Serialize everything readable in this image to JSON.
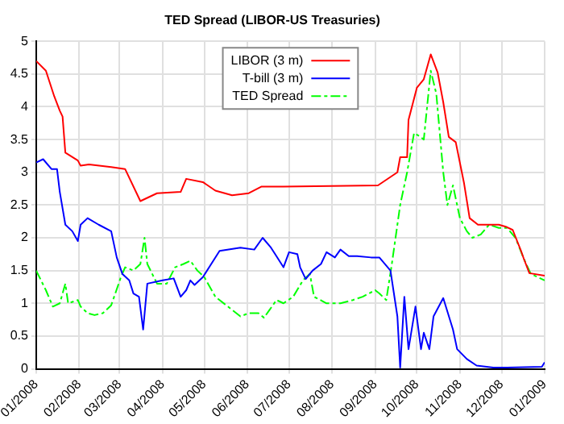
{
  "chart_data": {
    "type": "line",
    "title": "TED Spread (LIBOR-US Treasuries)",
    "xlim": [
      "2008-01-01",
      "2009-01-01"
    ],
    "xticks": [
      {
        "value": "2008-01-01",
        "label": "01/2008"
      },
      {
        "value": "2008-02-01",
        "label": "02/2008"
      },
      {
        "value": "2008-03-01",
        "label": "03/2008"
      },
      {
        "value": "2008-04-01",
        "label": "04/2008"
      },
      {
        "value": "2008-05-01",
        "label": "05/2008"
      },
      {
        "value": "2008-06-01",
        "label": "06/2008"
      },
      {
        "value": "2008-07-01",
        "label": "07/2008"
      },
      {
        "value": "2008-08-01",
        "label": "08/2008"
      },
      {
        "value": "2008-09-01",
        "label": "09/2008"
      },
      {
        "value": "2008-10-01",
        "label": "10/2008"
      },
      {
        "value": "2008-11-01",
        "label": "11/2008"
      },
      {
        "value": "2008-12-01",
        "label": "12/2008"
      },
      {
        "value": "2009-01-01",
        "label": "01/2009"
      }
    ],
    "ylim": [
      0,
      5
    ],
    "yticks": [
      0,
      0.5,
      1,
      1.5,
      2,
      2.5,
      3,
      3.5,
      4,
      4.5,
      5
    ],
    "grid": true,
    "legend": "top",
    "marker": "none",
    "series": [
      {
        "name": "LIBOR (3 m)",
        "color": "#ff0000",
        "line_style": "solid",
        "x": [
          "2008-01-01",
          "2008-01-08",
          "2008-01-14",
          "2008-01-18",
          "2008-01-20",
          "2008-01-22",
          "2008-01-31",
          "2008-02-02",
          "2008-02-08",
          "2008-02-24",
          "2008-03-05",
          "2008-03-16",
          "2008-03-28",
          "2008-04-14",
          "2008-04-18",
          "2008-04-30",
          "2008-05-09",
          "2008-05-21",
          "2008-06-02",
          "2008-06-11",
          "2008-06-27",
          "2008-09-03",
          "2008-09-17",
          "2008-09-19",
          "2008-09-24",
          "2008-09-25",
          "2008-10-01",
          "2008-10-06",
          "2008-10-11",
          "2008-10-16",
          "2008-10-20",
          "2008-10-24",
          "2008-10-29",
          "2008-11-04",
          "2008-11-08",
          "2008-11-14",
          "2008-11-29",
          "2008-12-04",
          "2008-12-09",
          "2008-12-15",
          "2008-12-17",
          "2008-12-21",
          "2009-01-01"
        ],
        "values": [
          4.7,
          4.55,
          4.16,
          3.94,
          3.85,
          3.3,
          3.18,
          3.1,
          3.12,
          3.08,
          3.05,
          2.56,
          2.68,
          2.7,
          2.9,
          2.85,
          2.72,
          2.65,
          2.68,
          2.78,
          2.78,
          2.8,
          3.0,
          3.23,
          3.23,
          3.8,
          4.29,
          4.42,
          4.8,
          4.52,
          4.07,
          3.54,
          3.46,
          2.83,
          2.3,
          2.2,
          2.2,
          2.17,
          2.12,
          1.8,
          1.68,
          1.46,
          1.42
        ]
      },
      {
        "name": "T-bill (3 m)",
        "color": "#0000ff",
        "line_style": "solid",
        "x": [
          "2008-01-01",
          "2008-01-06",
          "2008-01-12",
          "2008-01-16",
          "2008-01-18",
          "2008-01-22",
          "2008-01-27",
          "2008-01-31",
          "2008-02-02",
          "2008-02-07",
          "2008-02-15",
          "2008-02-24",
          "2008-02-28",
          "2008-03-03",
          "2008-03-08",
          "2008-03-11",
          "2008-03-15",
          "2008-03-18",
          "2008-03-21",
          "2008-04-01",
          "2008-04-09",
          "2008-04-14",
          "2008-04-18",
          "2008-04-21",
          "2008-04-24",
          "2008-04-30",
          "2008-05-12",
          "2008-05-27",
          "2008-06-06",
          "2008-06-12",
          "2008-06-18",
          "2008-06-21",
          "2008-06-27",
          "2008-07-01",
          "2008-07-07",
          "2008-07-09",
          "2008-07-13",
          "2008-07-18",
          "2008-07-24",
          "2008-07-28",
          "2008-08-03",
          "2008-08-07",
          "2008-08-13",
          "2008-08-19",
          "2008-08-29",
          "2008-09-04",
          "2008-09-12",
          "2008-09-17",
          "2008-09-19",
          "2008-09-22",
          "2008-09-25",
          "2008-09-30",
          "2008-10-04",
          "2008-10-06",
          "2008-10-10",
          "2008-10-13",
          "2008-10-20",
          "2008-10-27",
          "2008-10-30",
          "2008-11-06",
          "2008-11-13",
          "2008-11-25",
          "2008-12-05",
          "2008-12-30",
          "2009-01-01"
        ],
        "values": [
          3.15,
          3.2,
          3.05,
          3.05,
          2.7,
          2.2,
          2.1,
          1.95,
          2.2,
          2.3,
          2.2,
          2.1,
          1.7,
          1.45,
          1.35,
          1.15,
          1.1,
          0.6,
          1.3,
          1.35,
          1.38,
          1.1,
          1.2,
          1.35,
          1.28,
          1.4,
          1.8,
          1.85,
          1.82,
          2.0,
          1.85,
          1.75,
          1.55,
          1.78,
          1.75,
          1.55,
          1.37,
          1.5,
          1.6,
          1.78,
          1.7,
          1.82,
          1.72,
          1.72,
          1.7,
          1.7,
          1.5,
          0.8,
          0.02,
          1.1,
          0.3,
          0.95,
          0.3,
          0.55,
          0.3,
          0.8,
          1.08,
          0.6,
          0.3,
          0.15,
          0.05,
          0.02,
          0.02,
          0.03,
          0.1
        ]
      },
      {
        "name": "TED Spread",
        "color": "#00ff00",
        "line_style": "dashed",
        "x": [
          "2008-01-01",
          "2008-01-08",
          "2008-01-13",
          "2008-01-18",
          "2008-01-22",
          "2008-01-24",
          "2008-01-31",
          "2008-02-02",
          "2008-02-07",
          "2008-02-12",
          "2008-02-18",
          "2008-02-24",
          "2008-03-02",
          "2008-03-05",
          "2008-03-11",
          "2008-03-16",
          "2008-03-19",
          "2008-03-21",
          "2008-03-28",
          "2008-04-04",
          "2008-04-10",
          "2008-04-16",
          "2008-04-21",
          "2008-04-26",
          "2008-05-01",
          "2008-05-09",
          "2008-05-18",
          "2008-05-27",
          "2008-06-02",
          "2008-06-09",
          "2008-06-13",
          "2008-06-17",
          "2008-06-22",
          "2008-06-27",
          "2008-07-04",
          "2008-07-11",
          "2008-07-16",
          "2008-07-19",
          "2008-07-28",
          "2008-08-07",
          "2008-08-16",
          "2008-08-23",
          "2008-09-01",
          "2008-09-04",
          "2008-09-09",
          "2008-09-13",
          "2008-09-17",
          "2008-09-19",
          "2008-09-24",
          "2008-09-29",
          "2008-10-03",
          "2008-10-06",
          "2008-10-11",
          "2008-10-15",
          "2008-10-20",
          "2008-10-23",
          "2008-10-27",
          "2008-11-01",
          "2008-11-06",
          "2008-11-10",
          "2008-11-16",
          "2008-11-22",
          "2008-11-29",
          "2008-12-05",
          "2008-12-11",
          "2008-12-17",
          "2008-12-22",
          "2009-01-01"
        ],
        "values": [
          1.5,
          1.2,
          0.95,
          1.0,
          1.3,
          1.0,
          1.05,
          0.95,
          0.85,
          0.82,
          0.85,
          0.97,
          1.4,
          1.55,
          1.5,
          1.6,
          2.0,
          1.6,
          1.3,
          1.3,
          1.55,
          1.6,
          1.65,
          1.5,
          1.4,
          1.1,
          0.95,
          0.8,
          0.85,
          0.85,
          0.78,
          0.9,
          1.05,
          1.0,
          1.1,
          1.35,
          1.45,
          1.1,
          1.0,
          1.0,
          1.05,
          1.1,
          1.2,
          1.15,
          1.05,
          1.6,
          2.2,
          2.5,
          3.0,
          3.6,
          3.55,
          3.5,
          4.55,
          4.2,
          3.0,
          2.5,
          2.8,
          2.3,
          2.1,
          2.0,
          2.05,
          2.2,
          2.15,
          2.15,
          2.0,
          1.68,
          1.45,
          1.35
        ]
      }
    ]
  }
}
